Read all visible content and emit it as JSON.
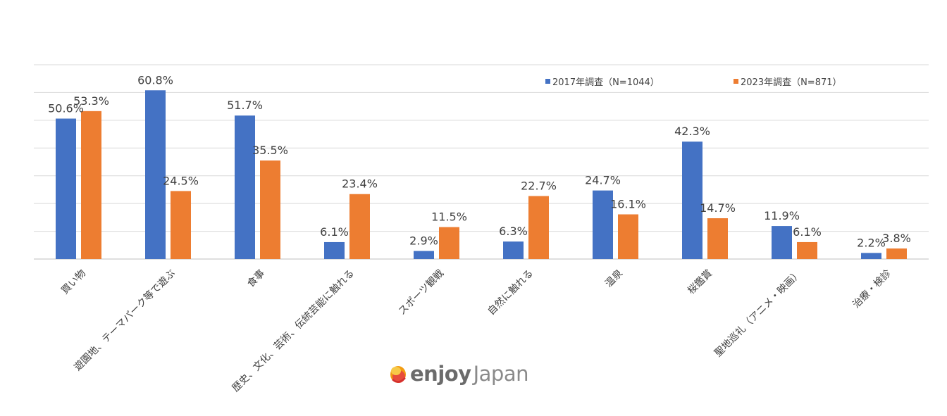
{
  "chart_data": {
    "type": "bar",
    "categories": [
      "買い物",
      "遊園地、テーマパーク等で遊ぶ",
      "食事",
      "歴史、文化、芸術、伝統芸能に触れる",
      "スポーツ観戦",
      "自然に触れる",
      "温泉",
      "桜鑑賞",
      "聖地巡礼（アニメ・映画）",
      "治療・検診"
    ],
    "series": [
      {
        "name": "2017年調査（N=1044）",
        "color": "#4472c4",
        "values": [
          50.6,
          60.8,
          51.7,
          6.1,
          2.9,
          6.3,
          24.7,
          42.3,
          11.9,
          2.2
        ],
        "labels": [
          "50.6%",
          "60.8%",
          "51.7%",
          "6.1%",
          "2.9%",
          "6.3%",
          "24.7%",
          "42.3%",
          "11.9%",
          "2.2%"
        ]
      },
      {
        "name": "2023年調査（N=871）",
        "color": "#ed7d31",
        "values": [
          53.3,
          24.5,
          35.5,
          23.4,
          11.5,
          22.7,
          16.1,
          14.7,
          6.1,
          3.8
        ],
        "labels": [
          "53.3%",
          "24.5%",
          "35.5%",
          "23.4%",
          "11.5%",
          "22.7%",
          "16.1%",
          "14.7%",
          "6.1%",
          "3.8%"
        ]
      }
    ],
    "ylim": [
      0,
      70
    ],
    "grid": true,
    "legend_position": "top-right",
    "y_tick_labels_visible": false
  },
  "logo": {
    "text_bold": "enjoy",
    "text_light": "Japan"
  }
}
